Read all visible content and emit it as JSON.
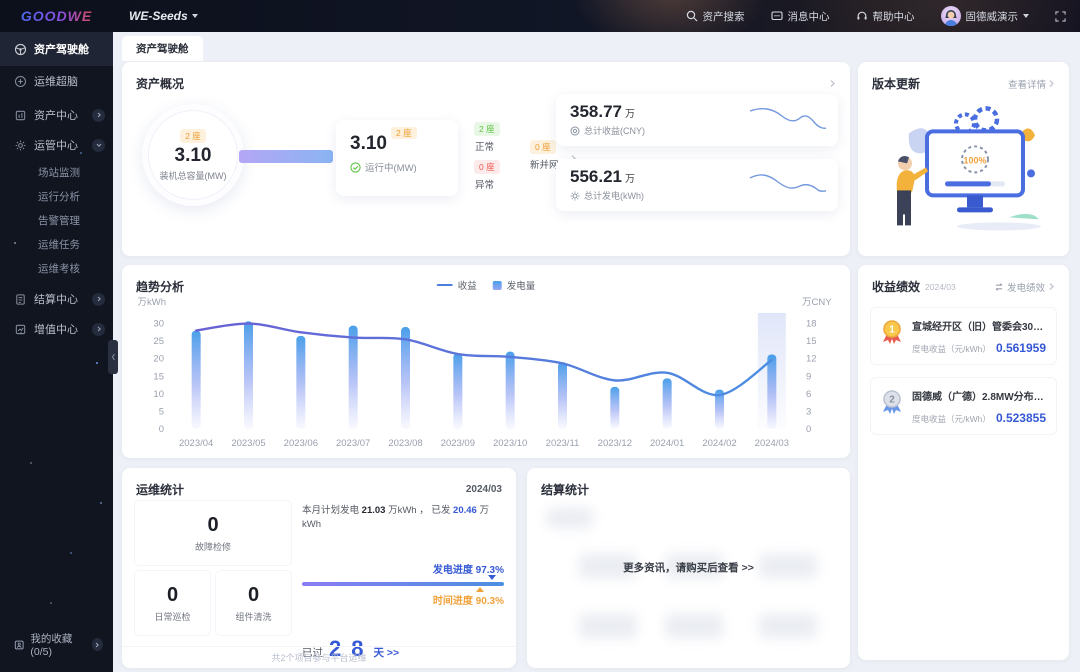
{
  "topbar": {
    "logo_text": "GOODWE",
    "product": "WE-Seeds",
    "search_label": "资产搜索",
    "messages_label": "消息中心",
    "help_label": "帮助中心",
    "user_name": "固德威演示"
  },
  "sidebar": {
    "items": [
      {
        "label": "资产驾驶舱"
      },
      {
        "label": "运维超脑"
      },
      {
        "label": "资产中心"
      },
      {
        "label": "运管中心",
        "children": [
          "场站监测",
          "运行分析",
          "告警管理",
          "运维任务",
          "运维考核"
        ]
      },
      {
        "label": "结算中心"
      },
      {
        "label": "增值中心"
      }
    ],
    "favorites_label": "我的收藏(0/5)"
  },
  "tab": {
    "active": "资产驾驶舱"
  },
  "overview": {
    "title": "资产概况",
    "capacity": {
      "badge": "2 座",
      "value": "3.10",
      "label": "装机总容量(MW)"
    },
    "running": {
      "value": "3.10",
      "badge": "2 座",
      "label": "运行中(MW)"
    },
    "status": {
      "normal_badge": "2 座",
      "normal_label": "正常",
      "abnormal_badge": "0 座",
      "abnormal_label": "异常"
    },
    "new_grid": {
      "badge": "0 座",
      "label": "新并网"
    },
    "totals": [
      {
        "value": "358.77",
        "unit": "万",
        "label": "总计收益(CNY)"
      },
      {
        "value": "556.21",
        "unit": "万",
        "label": "总计发电(kWh)"
      }
    ]
  },
  "version_card": {
    "title": "版本更新",
    "link": "查看详情",
    "progress_text": "100%"
  },
  "trend": {
    "title": "趋势分析"
  },
  "chart_data": {
    "type": "bar",
    "title": "趋势分析",
    "categories": [
      "2023/04",
      "2023/05",
      "2023/06",
      "2023/07",
      "2023/08",
      "2023/09",
      "2023/10",
      "2023/11",
      "2023/12",
      "2024/01",
      "2024/02",
      "2024/03"
    ],
    "series": [
      {
        "name": "收益",
        "type": "line",
        "axis": "right",
        "values": [
          16.8,
          18,
          16.5,
          15.6,
          15.3,
          12.8,
          12.3,
          11.2,
          8.3,
          9.6,
          5.8,
          11.8
        ]
      },
      {
        "name": "发电量",
        "type": "bar",
        "axis": "left",
        "values": [
          28,
          30.6,
          26.5,
          29.4,
          29,
          21.5,
          22,
          19,
          12,
          14.4,
          11.2,
          21.2
        ]
      }
    ],
    "left_axis": {
      "label": "万kWh",
      "ticks": [
        0,
        5,
        10,
        15,
        20,
        25,
        30
      ],
      "max": 33
    },
    "right_axis": {
      "label": "万CNY",
      "ticks": [
        0,
        3,
        6,
        9,
        12,
        15,
        18
      ],
      "max": 19.8
    },
    "highlight_category": "2024/03",
    "grid": false,
    "legend_position": "top-center"
  },
  "performance": {
    "title": "收益绩效",
    "period": "2024/03",
    "switch_label": "发电绩效",
    "items": [
      {
        "rank": "1",
        "name": "宣城经开区（旧）管委会303kW分布...",
        "metric": "度电收益（元/kWh）",
        "value": "0.561959"
      },
      {
        "rank": "2",
        "name": "固德威（广德）2.8MW分布式光伏",
        "metric": "度电收益（元/kWh）",
        "value": "0.523855"
      }
    ]
  },
  "om_stats": {
    "title": "运维统计",
    "period": "2024/03",
    "counters": [
      {
        "value": "0",
        "label": "故障检修"
      },
      {
        "value": "0",
        "label": "日常巡检"
      },
      {
        "value": "0",
        "label": "组件清洗"
      }
    ],
    "plan_prefix": "本月计划发电",
    "plan_value": "21.03",
    "plan_unit": "万kWh",
    "separator": "，",
    "done_prefix": "已发",
    "done_value": "20.46",
    "done_unit": "万kWh",
    "generation_label": "发电进度",
    "generation_value": "97.3%",
    "time_label": "时间进度",
    "time_value": "90.3%",
    "days_prefix": "已过",
    "days_value": "28",
    "days_suffix": "天 >>",
    "footer": "共2个项目参与平台运维"
  },
  "settlement": {
    "title": "结算统计",
    "locked_text": "更多资讯，请购买后查看 >>"
  },
  "colors": {
    "accent": "#3558d4",
    "orange": "#f0a23c",
    "green": "#5fc244",
    "red": "#f05a50"
  }
}
